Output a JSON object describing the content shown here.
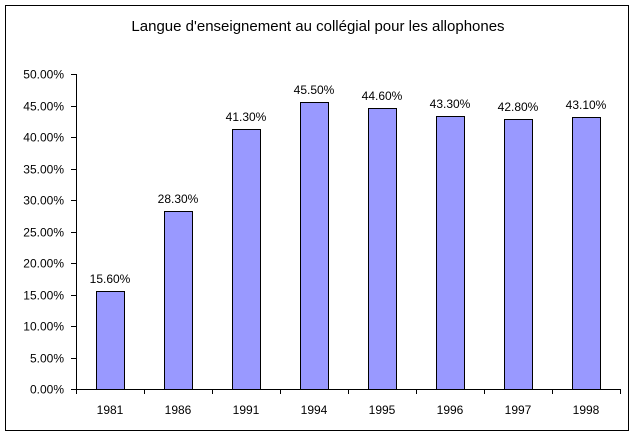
{
  "chart_data": {
    "type": "bar",
    "title": "Langue d'enseignement au collégial pour les allophones",
    "xlabel": "",
    "ylabel": "",
    "categories": [
      "1981",
      "1986",
      "1991",
      "1994",
      "1995",
      "1996",
      "1997",
      "1998"
    ],
    "values": [
      15.6,
      28.3,
      41.3,
      45.5,
      44.6,
      43.3,
      42.8,
      43.1
    ],
    "data_labels": [
      "15.60%",
      "28.30%",
      "41.30%",
      "45.50%",
      "44.60%",
      "43.30%",
      "42.80%",
      "43.10%"
    ],
    "ylim": [
      0,
      50
    ],
    "y_ticks": [
      "0.00%",
      "5.00%",
      "10.00%",
      "15.00%",
      "20.00%",
      "25.00%",
      "30.00%",
      "35.00%",
      "40.00%",
      "45.00%",
      "50.00%"
    ],
    "grid": false,
    "legend": null,
    "bar_color": "#9999FF"
  }
}
